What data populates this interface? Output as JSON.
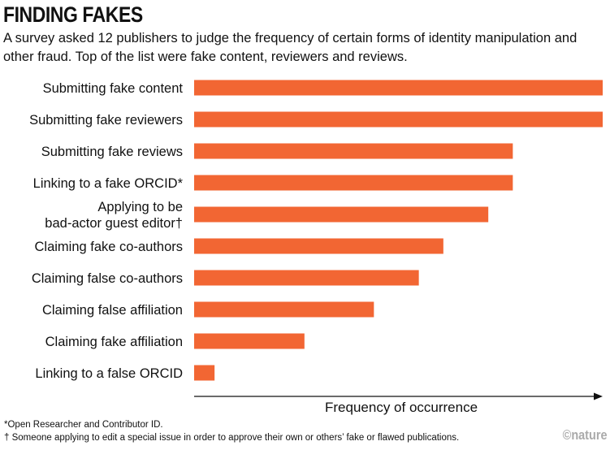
{
  "chart_data": {
    "type": "bar",
    "orientation": "horizontal",
    "title": "FINDING FAKES",
    "subtitle": "A survey asked 12 publishers to judge the frequency of certain forms of identity manipulation and other fraud. Top of the list were fake content, reviewers and reviews.",
    "xlabel": "Frequency of occurrence",
    "ylabel": "",
    "xlim": [
      0,
      1
    ],
    "grid": false,
    "bar_color": "#f26633",
    "categories": [
      [
        "Submitting fake content"
      ],
      [
        "Submitting fake reviewers"
      ],
      [
        "Submitting fake reviews"
      ],
      [
        "Linking to a fake ORCID*"
      ],
      [
        "Applying to be",
        "bad-actor guest editor†"
      ],
      [
        "Claiming fake co-authors"
      ],
      [
        "Claiming false co-authors"
      ],
      [
        "Claiming false affiliation"
      ],
      [
        "Claiming fake affiliation"
      ],
      [
        "Linking to a false ORCID"
      ]
    ],
    "values": [
      1.0,
      1.0,
      0.78,
      0.78,
      0.72,
      0.61,
      0.55,
      0.44,
      0.27,
      0.05
    ]
  },
  "footnotes": [
    "*Open Researcher and Contributor ID.",
    "† Someone applying to edit a special issue in order to approve their own or others’ fake or flawed publications."
  ],
  "logo": "©nature"
}
